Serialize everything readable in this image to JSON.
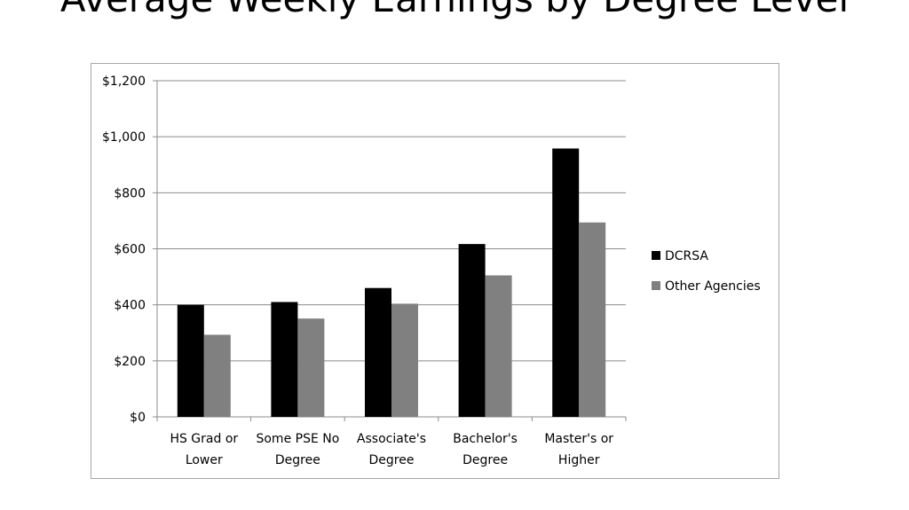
{
  "slide": {
    "title": "Average Weekly Earnings by Degree Level"
  },
  "chart_data": {
    "type": "bar",
    "title": "",
    "xlabel": "",
    "ylabel": "",
    "categories": [
      [
        "HS Grad or",
        "Lower"
      ],
      [
        "Some PSE No",
        "Degree"
      ],
      [
        "Associate's",
        "Degree"
      ],
      [
        "Bachelor's",
        "Degree"
      ],
      [
        "Master's or",
        "Higher"
      ]
    ],
    "series": [
      {
        "name": "DCRSA",
        "color": "#000000",
        "values": [
          400,
          410,
          460,
          617,
          958
        ]
      },
      {
        "name": "Other Agencies",
        "color": "#808080",
        "values": [
          293,
          351,
          404,
          505,
          694
        ]
      }
    ],
    "ylim": [
      0,
      1200
    ],
    "yticks": [
      0,
      200,
      400,
      600,
      800,
      1000,
      1200
    ],
    "ytick_labels": [
      "$0",
      "$200",
      "$400",
      "$600",
      "$800",
      "$1,000",
      "$1,200"
    ],
    "grid": true,
    "legend_position": "right"
  }
}
